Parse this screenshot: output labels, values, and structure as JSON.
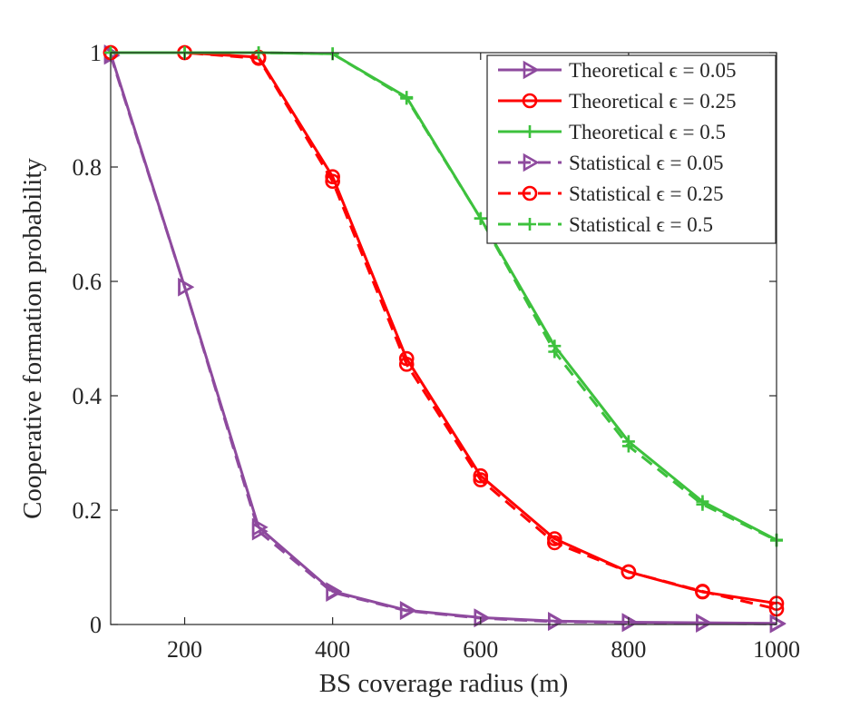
{
  "chart_data": {
    "type": "line",
    "title": "",
    "xlabel": "BS coverage radius (m)",
    "ylabel": "Cooperative formation probability",
    "xlim": [
      100,
      1000
    ],
    "ylim": [
      0,
      1
    ],
    "xticks": [
      200,
      400,
      600,
      800,
      1000
    ],
    "yticks": [
      0,
      0.2,
      0.4,
      0.6,
      0.8,
      1
    ],
    "ytick_labels": [
      "0",
      "0.2",
      "0.4",
      "0.6",
      "0.8",
      "1"
    ],
    "grid": false,
    "legend_position": "top-right",
    "x": [
      100,
      200,
      300,
      400,
      500,
      600,
      700,
      800,
      900,
      1000
    ],
    "series": [
      {
        "name": "Theoretical ϵ = 0.05",
        "color": "#8e4a9e",
        "dash": "solid",
        "marker": "triangle-right",
        "values": [
          0.998,
          0.59,
          0.17,
          0.058,
          0.025,
          0.012,
          0.006,
          0.004,
          0.003,
          0.002
        ]
      },
      {
        "name": "Theoretical ϵ = 0.25",
        "color": "#ff0000",
        "dash": "solid",
        "marker": "circle",
        "values": [
          1.0,
          1.0,
          0.992,
          0.783,
          0.465,
          0.26,
          0.15,
          0.092,
          0.057,
          0.037
        ]
      },
      {
        "name": "Theoretical ϵ = 0.5",
        "color": "#3dc13d",
        "dash": "solid",
        "marker": "plus",
        "values": [
          1.0,
          1.0,
          1.0,
          0.998,
          0.922,
          0.71,
          0.487,
          0.32,
          0.215,
          0.148
        ]
      },
      {
        "name": "Statistical ϵ = 0.05",
        "color": "#8e4a9e",
        "dash": "dashed",
        "marker": "triangle-right",
        "values": [
          0.995,
          0.59,
          0.163,
          0.056,
          0.024,
          0.011,
          0.005,
          0.003,
          0.002,
          0.001
        ]
      },
      {
        "name": "Statistical ϵ = 0.25",
        "color": "#ff0000",
        "dash": "dashed",
        "marker": "circle",
        "values": [
          1.0,
          1.0,
          0.99,
          0.775,
          0.455,
          0.253,
          0.143,
          0.092,
          0.058,
          0.027
        ]
      },
      {
        "name": "Statistical ϵ = 0.5",
        "color": "#3dc13d",
        "dash": "dashed",
        "marker": "plus",
        "values": [
          1.0,
          1.0,
          1.0,
          0.998,
          0.92,
          0.71,
          0.477,
          0.312,
          0.21,
          0.147
        ]
      }
    ]
  }
}
